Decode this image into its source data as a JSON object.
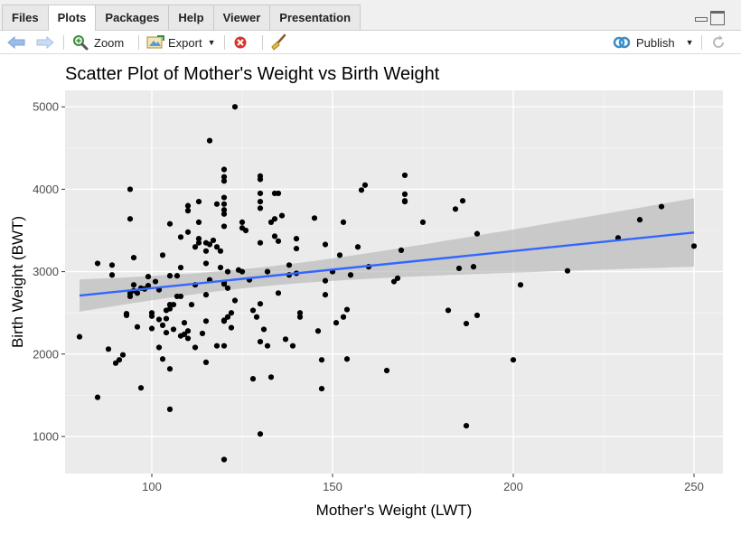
{
  "tabs": [
    {
      "label": "Files"
    },
    {
      "label": "Plots"
    },
    {
      "label": "Packages"
    },
    {
      "label": "Help"
    },
    {
      "label": "Viewer"
    },
    {
      "label": "Presentation"
    }
  ],
  "toolbar": {
    "zoom_label": "Zoom",
    "export_label": "Export",
    "publish_label": "Publish"
  },
  "colors": {
    "panel_bg": "#ebebeb",
    "point": "#000000",
    "fit_line": "#3366ff",
    "ribbon": "#b3b3b3"
  },
  "chart_data": {
    "type": "scatter",
    "title": "Scatter Plot of Mother's Weight vs Birth Weight",
    "xlabel": "Mother's Weight (LWT)",
    "ylabel": "Birth Weight (BWT)",
    "xlim": [
      76,
      258
    ],
    "ylim": [
      550,
      5200
    ],
    "xticks": [
      100,
      150,
      200,
      250
    ],
    "yticks": [
      1000,
      2000,
      3000,
      4000,
      5000
    ],
    "grid": true,
    "fit": {
      "method": "lm",
      "x": [
        80,
        250
      ],
      "y": [
        2710,
        3475
      ],
      "ci_lower": [
        2540,
        3060
      ],
      "ci_upper": [
        2930,
        3890
      ]
    },
    "points": [
      [
        80,
        2210
      ],
      [
        85,
        1475
      ],
      [
        85,
        3100
      ],
      [
        88,
        2060
      ],
      [
        89,
        2960
      ],
      [
        89,
        3080
      ],
      [
        90,
        1890
      ],
      [
        91,
        1930
      ],
      [
        92,
        1990
      ],
      [
        93,
        2490
      ],
      [
        93,
        2470
      ],
      [
        94,
        2740
      ],
      [
        94,
        2700
      ],
      [
        94,
        3640
      ],
      [
        94,
        4000
      ],
      [
        95,
        2770
      ],
      [
        95,
        2840
      ],
      [
        95,
        3170
      ],
      [
        96,
        2330
      ],
      [
        96,
        2740
      ],
      [
        97,
        1590
      ],
      [
        97,
        2800
      ],
      [
        98,
        2790
      ],
      [
        99,
        2830
      ],
      [
        99,
        2940
      ],
      [
        100,
        2310
      ],
      [
        100,
        2500
      ],
      [
        100,
        2460
      ],
      [
        101,
        2880
      ],
      [
        102,
        2080
      ],
      [
        102,
        2420
      ],
      [
        102,
        2780
      ],
      [
        103,
        2350
      ],
      [
        103,
        1940
      ],
      [
        103,
        3200
      ],
      [
        104,
        2530
      ],
      [
        104,
        2260
      ],
      [
        104,
        2430
      ],
      [
        105,
        1330
      ],
      [
        105,
        1820
      ],
      [
        105,
        2550
      ],
      [
        105,
        2600
      ],
      [
        105,
        2950
      ],
      [
        105,
        3580
      ],
      [
        106,
        2300
      ],
      [
        106,
        2600
      ],
      [
        107,
        2700
      ],
      [
        107,
        2950
      ],
      [
        108,
        2220
      ],
      [
        108,
        2700
      ],
      [
        108,
        3050
      ],
      [
        108,
        3420
      ],
      [
        109,
        2240
      ],
      [
        109,
        2380
      ],
      [
        110,
        2280
      ],
      [
        110,
        2190
      ],
      [
        110,
        3740
      ],
      [
        110,
        3800
      ],
      [
        110,
        3480
      ],
      [
        111,
        2600
      ],
      [
        112,
        2080
      ],
      [
        112,
        2840
      ],
      [
        112,
        3300
      ],
      [
        113,
        3600
      ],
      [
        113,
        3400
      ],
      [
        113,
        3350
      ],
      [
        113,
        3850
      ],
      [
        114,
        2250
      ],
      [
        115,
        2400
      ],
      [
        115,
        3250
      ],
      [
        115,
        1900
      ],
      [
        115,
        3100
      ],
      [
        115,
        2720
      ],
      [
        115,
        3350
      ],
      [
        116,
        4590
      ],
      [
        116,
        2900
      ],
      [
        116,
        3330
      ],
      [
        117,
        3380
      ],
      [
        118,
        2100
      ],
      [
        118,
        3300
      ],
      [
        118,
        3820
      ],
      [
        119,
        3250
      ],
      [
        119,
        3050
      ],
      [
        120,
        2100
      ],
      [
        120,
        2410
      ],
      [
        120,
        2400
      ],
      [
        120,
        3550
      ],
      [
        120,
        3700
      ],
      [
        120,
        3750
      ],
      [
        120,
        3820
      ],
      [
        120,
        3900
      ],
      [
        120,
        4100
      ],
      [
        120,
        4150
      ],
      [
        120,
        4240
      ],
      [
        120,
        2850
      ],
      [
        120,
        2870
      ],
      [
        120,
        720
      ],
      [
        121,
        2800
      ],
      [
        121,
        3000
      ],
      [
        121,
        2450
      ],
      [
        122,
        2320
      ],
      [
        122,
        2500
      ],
      [
        123,
        2650
      ],
      [
        123,
        5000
      ],
      [
        124,
        3020
      ],
      [
        125,
        3000
      ],
      [
        125,
        3530
      ],
      [
        125,
        3600
      ],
      [
        126,
        3500
      ],
      [
        127,
        2900
      ],
      [
        128,
        1700
      ],
      [
        128,
        2530
      ],
      [
        129,
        2450
      ],
      [
        130,
        1030
      ],
      [
        130,
        2150
      ],
      [
        130,
        2610
      ],
      [
        130,
        3350
      ],
      [
        130,
        3770
      ],
      [
        130,
        3850
      ],
      [
        130,
        3950
      ],
      [
        130,
        4120
      ],
      [
        130,
        4160
      ],
      [
        131,
        2300
      ],
      [
        132,
        2100
      ],
      [
        132,
        3000
      ],
      [
        133,
        1720
      ],
      [
        133,
        3600
      ],
      [
        134,
        3640
      ],
      [
        134,
        3430
      ],
      [
        134,
        3950
      ],
      [
        135,
        2740
      ],
      [
        135,
        3950
      ],
      [
        135,
        3370
      ],
      [
        136,
        3680
      ],
      [
        137,
        2180
      ],
      [
        138,
        2960
      ],
      [
        138,
        3080
      ],
      [
        139,
        2100
      ],
      [
        140,
        3280
      ],
      [
        140,
        3400
      ],
      [
        140,
        2980
      ],
      [
        141,
        2500
      ],
      [
        141,
        2450
      ],
      [
        145,
        3650
      ],
      [
        146,
        2280
      ],
      [
        147,
        1580
      ],
      [
        147,
        1930
      ],
      [
        148,
        2720
      ],
      [
        148,
        2890
      ],
      [
        148,
        3330
      ],
      [
        150,
        3000
      ],
      [
        151,
        2380
      ],
      [
        152,
        3200
      ],
      [
        153,
        2450
      ],
      [
        153,
        3600
      ],
      [
        154,
        2540
      ],
      [
        154,
        1940
      ],
      [
        155,
        2960
      ],
      [
        157,
        3300
      ],
      [
        158,
        3990
      ],
      [
        159,
        4050
      ],
      [
        160,
        3060
      ],
      [
        165,
        1800
      ],
      [
        167,
        2880
      ],
      [
        168,
        2920
      ],
      [
        169,
        3260
      ],
      [
        170,
        3850
      ],
      [
        170,
        3860
      ],
      [
        170,
        3940
      ],
      [
        170,
        4170
      ],
      [
        175,
        3600
      ],
      [
        182,
        2530
      ],
      [
        184,
        3760
      ],
      [
        185,
        3040
      ],
      [
        186,
        3860
      ],
      [
        187,
        2370
      ],
      [
        187,
        1130
      ],
      [
        189,
        3060
      ],
      [
        190,
        2470
      ],
      [
        190,
        3460
      ],
      [
        200,
        1930
      ],
      [
        202,
        2840
      ],
      [
        215,
        3010
      ],
      [
        229,
        3410
      ],
      [
        235,
        3630
      ],
      [
        241,
        3790
      ],
      [
        250,
        3310
      ]
    ]
  }
}
